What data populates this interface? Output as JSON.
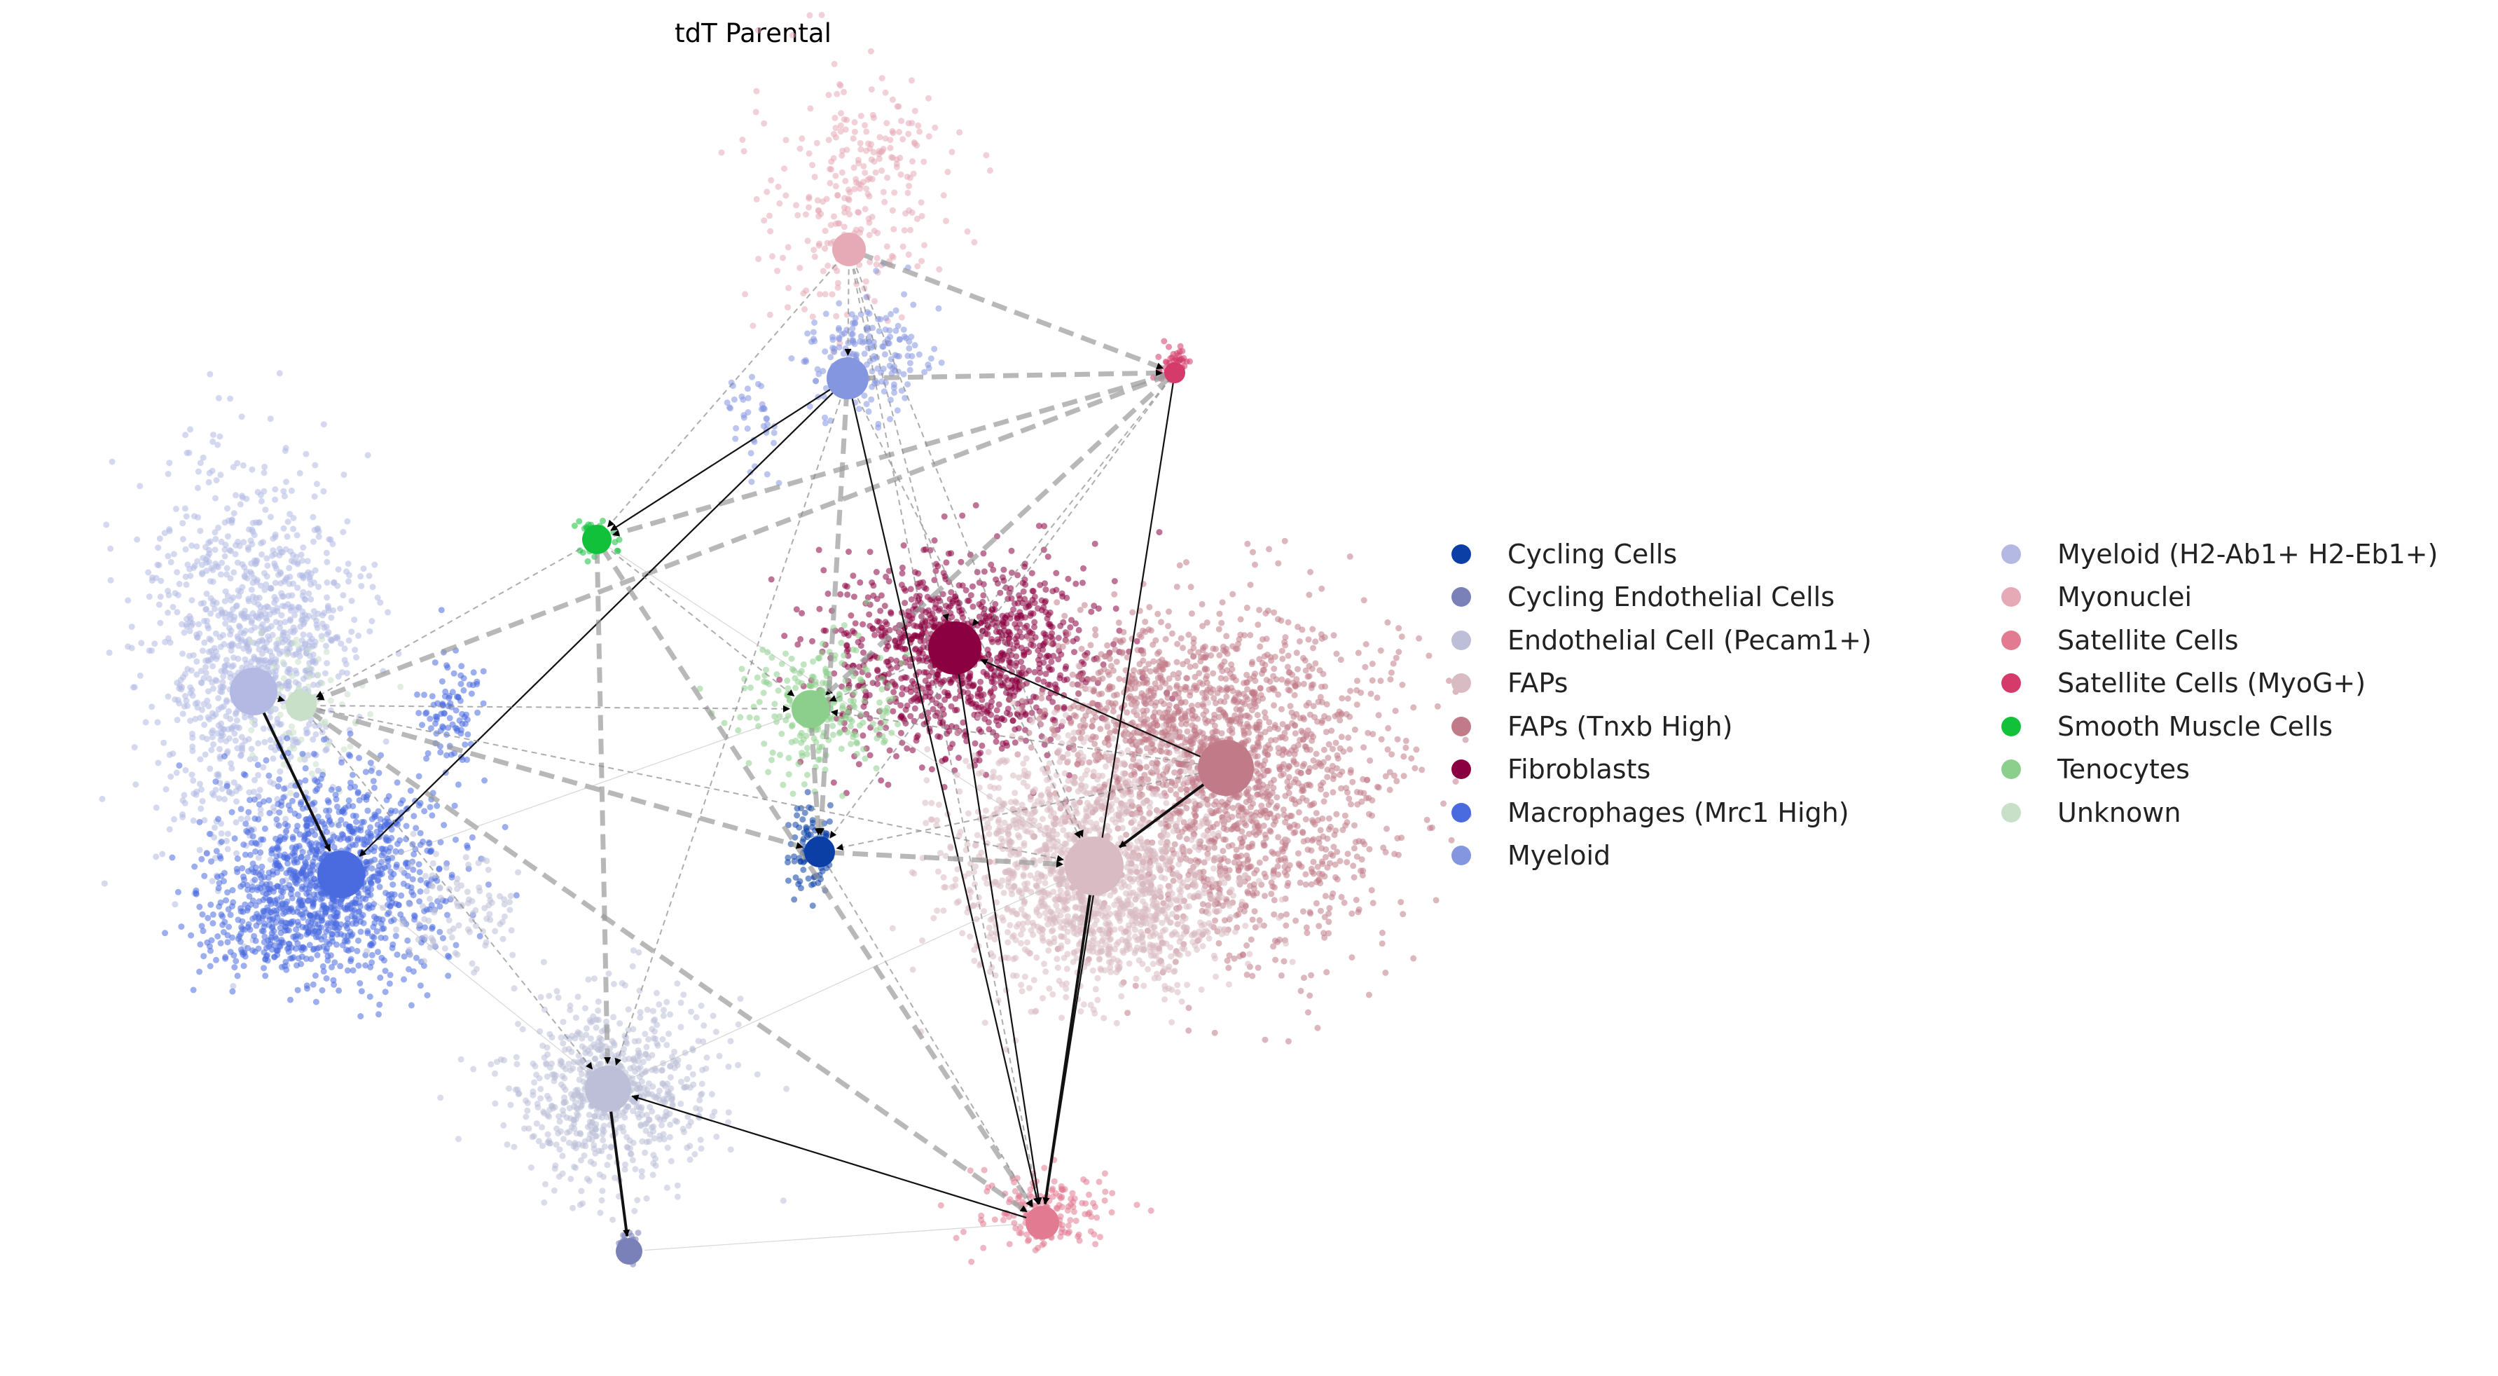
{
  "title": "tdT Parental",
  "categories": [
    {
      "id": "cycling",
      "label": "Cycling Cells",
      "color": "#0b3fa6"
    },
    {
      "id": "cycling_endo",
      "label": "Cycling Endothelial Cells",
      "color": "#7a80b8"
    },
    {
      "id": "endo",
      "label": "Endothelial Cell (Pecam1+)",
      "color": "#bcbfd7"
    },
    {
      "id": "faps",
      "label": "FAPs",
      "color": "#d9bcc3"
    },
    {
      "id": "faps_tnxb",
      "label": "FAPs (Tnxb High)",
      "color": "#c17b88"
    },
    {
      "id": "fibro",
      "label": "Fibroblasts",
      "color": "#8b0040"
    },
    {
      "id": "macro",
      "label": "Macrophages (Mrc1 High)",
      "color": "#4a6be0"
    },
    {
      "id": "myeloid",
      "label": "Myeloid",
      "color": "#8596e0"
    },
    {
      "id": "myeloid_h2",
      "label": "Myeloid (H2-Ab1+ H2-Eb1+)",
      "color": "#b3b9e3"
    },
    {
      "id": "myonuclei",
      "label": "Myonuclei",
      "color": "#e5aab6"
    },
    {
      "id": "satellite",
      "label": "Satellite Cells",
      "color": "#e27a92"
    },
    {
      "id": "satellite_myog",
      "label": "Satellite Cells (MyoG+)",
      "color": "#d43b6a"
    },
    {
      "id": "smooth",
      "label": "Smooth Muscle Cells",
      "color": "#12c13a"
    },
    {
      "id": "teno",
      "label": "Tenocytes",
      "color": "#8ccf8c"
    },
    {
      "id": "unknown",
      "label": "Unknown",
      "color": "#c8dfc8"
    }
  ]
}
